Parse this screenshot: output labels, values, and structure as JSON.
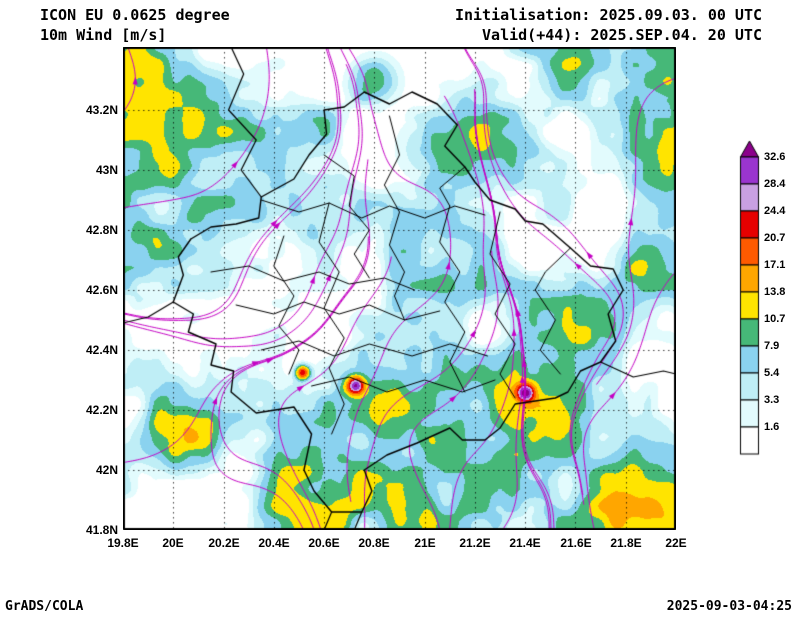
{
  "header": {
    "model_line": "ICON EU 0.0625 degree",
    "variable_line": "10m Wind [m/s]",
    "init_line": "Initialisation: 2025.09.03. 00 UTC",
    "valid_line": "Valid(+44): 2025.SEP.04. 20 UTC"
  },
  "footer": {
    "credit": "GrADS/COLA",
    "timestamp": "2025-09-03-04:25"
  },
  "axes": {
    "lat_ticks": [
      "43.2N",
      "43N",
      "42.8N",
      "42.6N",
      "42.4N",
      "42.2N",
      "42N",
      "41.8N"
    ],
    "lon_ticks": [
      "19.8E",
      "20E",
      "20.2E",
      "20.4E",
      "20.6E",
      "20.8E",
      "21E",
      "21.2E",
      "21.4E",
      "21.6E",
      "21.8E",
      "22E"
    ],
    "lon_range": [
      19.8,
      22.0
    ],
    "lat_range": [
      41.8,
      43.41
    ]
  },
  "colorbar": {
    "labels": [
      "32.6",
      "28.4",
      "24.4",
      "20.7",
      "17.1",
      "13.8",
      "10.7",
      "7.9",
      "5.4",
      "3.3",
      "1.6"
    ],
    "levels_ascending": [
      1.6,
      3.3,
      5.4,
      7.9,
      10.7,
      13.8,
      17.1,
      20.7,
      24.4,
      28.4,
      32.6
    ],
    "colors_bottom_to_top": [
      "#ffffff",
      "#e2fbfd",
      "#bfeef6",
      "#8ad2ef",
      "#46b878",
      "#ffe400",
      "#ffa600",
      "#ff5a00",
      "#e60000",
      "#c9a0e2",
      "#9a35cf",
      "#8b008b"
    ]
  },
  "chart_data": {
    "type": "heatmap",
    "title": "10m Wind [m/s]",
    "model": "ICON EU 0.0625 degree",
    "units": "m/s",
    "lon_range": [
      19.8,
      22.0
    ],
    "lat_range": [
      41.8,
      43.41
    ],
    "contour_levels": [
      1.6,
      3.3,
      5.4,
      7.9,
      10.7,
      13.8,
      17.1,
      20.7,
      24.4,
      28.4,
      32.6
    ],
    "palette_bottom_to_top": [
      "#ffffff",
      "#e2fbfd",
      "#bfeef6",
      "#8ad2ef",
      "#46b878",
      "#ffe400",
      "#ffa600",
      "#ff5a00",
      "#e60000",
      "#c9a0e2",
      "#9a35cf",
      "#8b008b"
    ],
    "legend_position": "right",
    "grid": "dotted"
  },
  "map_geometry": {
    "border_color": "#000000",
    "streamline_color": "#c400c4",
    "outline": [
      [
        20.07,
        42.77
      ],
      [
        20.02,
        42.71
      ],
      [
        20.04,
        42.65
      ],
      [
        20.0,
        42.56
      ],
      [
        20.08,
        42.52
      ],
      [
        20.06,
        42.46
      ],
      [
        20.17,
        42.42
      ],
      [
        20.15,
        42.35
      ],
      [
        20.24,
        42.33
      ],
      [
        20.23,
        42.26
      ],
      [
        20.33,
        42.19
      ],
      [
        20.48,
        42.21
      ],
      [
        20.55,
        42.12
      ],
      [
        20.52,
        42.0
      ],
      [
        20.56,
        41.93
      ],
      [
        20.63,
        41.86
      ],
      [
        20.75,
        41.86
      ],
      [
        20.79,
        41.93
      ],
      [
        20.76,
        42.0
      ],
      [
        20.85,
        42.05
      ],
      [
        20.97,
        42.09
      ],
      [
        21.1,
        42.14
      ],
      [
        21.15,
        42.1
      ],
      [
        21.24,
        42.1
      ],
      [
        21.3,
        42.14
      ],
      [
        21.36,
        42.22
      ],
      [
        21.44,
        42.23
      ],
      [
        21.52,
        42.24
      ],
      [
        21.57,
        42.26
      ],
      [
        21.62,
        42.33
      ],
      [
        21.7,
        42.36
      ],
      [
        21.76,
        42.43
      ],
      [
        21.73,
        42.52
      ],
      [
        21.79,
        42.6
      ],
      [
        21.75,
        42.67
      ],
      [
        21.66,
        42.68
      ],
      [
        21.58,
        42.74
      ],
      [
        21.47,
        42.82
      ],
      [
        21.4,
        42.83
      ],
      [
        21.36,
        42.87
      ],
      [
        21.26,
        42.9
      ],
      [
        21.2,
        42.96
      ],
      [
        21.16,
        43.01
      ],
      [
        21.08,
        43.08
      ],
      [
        21.13,
        43.15
      ],
      [
        21.05,
        43.22
      ],
      [
        20.95,
        43.26
      ],
      [
        20.86,
        43.22
      ],
      [
        20.76,
        43.26
      ],
      [
        20.68,
        43.21
      ],
      [
        20.6,
        43.2
      ],
      [
        20.61,
        43.12
      ],
      [
        20.54,
        43.05
      ],
      [
        20.48,
        42.97
      ],
      [
        20.35,
        42.91
      ],
      [
        20.34,
        42.84
      ],
      [
        20.25,
        42.82
      ],
      [
        20.15,
        42.81
      ],
      [
        20.07,
        42.77
      ]
    ],
    "external_borders": [
      [
        [
          19.8,
          42.49
        ],
        [
          19.9,
          42.51
        ],
        [
          20.0,
          42.56
        ]
      ],
      [
        [
          20.35,
          42.91
        ],
        [
          20.27,
          43.0
        ],
        [
          20.33,
          43.1
        ],
        [
          20.22,
          43.2
        ],
        [
          20.28,
          43.32
        ],
        [
          20.23,
          43.41
        ]
      ],
      [
        [
          20.63,
          41.86
        ],
        [
          20.6,
          41.8
        ]
      ],
      [
        [
          20.75,
          41.86
        ],
        [
          20.72,
          41.8
        ]
      ],
      [
        [
          21.7,
          42.36
        ],
        [
          21.83,
          42.31
        ],
        [
          21.95,
          42.33
        ],
        [
          22.0,
          42.32
        ]
      ]
    ],
    "internal_borders": [
      [
        [
          20.86,
          43.18
        ],
        [
          20.9,
          43.05
        ],
        [
          20.84,
          42.95
        ],
        [
          20.9,
          42.86
        ],
        [
          20.86,
          42.75
        ],
        [
          20.92,
          42.66
        ],
        [
          20.88,
          42.58
        ],
        [
          20.92,
          42.5
        ]
      ],
      [
        [
          20.6,
          43.05
        ],
        [
          20.72,
          42.98
        ],
        [
          20.7,
          42.88
        ],
        [
          20.78,
          42.8
        ],
        [
          20.72,
          42.72
        ],
        [
          20.78,
          42.64
        ]
      ],
      [
        [
          20.35,
          42.9
        ],
        [
          20.5,
          42.86
        ],
        [
          20.62,
          42.89
        ],
        [
          20.75,
          42.84
        ],
        [
          20.86,
          42.88
        ],
        [
          21.0,
          42.84
        ],
        [
          21.12,
          42.88
        ],
        [
          21.24,
          42.85
        ]
      ],
      [
        [
          20.15,
          42.66
        ],
        [
          20.3,
          42.68
        ],
        [
          20.44,
          42.63
        ],
        [
          20.58,
          42.66
        ],
        [
          20.7,
          42.62
        ],
        [
          20.84,
          42.64
        ],
        [
          20.96,
          42.6
        ]
      ],
      [
        [
          20.25,
          42.55
        ],
        [
          20.4,
          42.52
        ],
        [
          20.52,
          42.56
        ],
        [
          20.66,
          42.52
        ],
        [
          20.78,
          42.55
        ],
        [
          20.92,
          42.5
        ],
        [
          21.06,
          42.53
        ]
      ],
      [
        [
          20.35,
          42.4
        ],
        [
          20.5,
          42.43
        ],
        [
          20.64,
          42.38
        ],
        [
          20.78,
          42.42
        ],
        [
          20.95,
          42.38
        ],
        [
          21.1,
          42.42
        ],
        [
          21.25,
          42.38
        ]
      ],
      [
        [
          20.55,
          42.28
        ],
        [
          20.7,
          42.31
        ],
        [
          20.85,
          42.26
        ],
        [
          21.0,
          42.3
        ],
        [
          21.15,
          42.26
        ],
        [
          21.28,
          42.3
        ]
      ],
      [
        [
          21.3,
          42.86
        ],
        [
          21.26,
          42.72
        ],
        [
          21.34,
          42.62
        ],
        [
          21.28,
          42.52
        ],
        [
          21.36,
          42.42
        ],
        [
          21.3,
          42.32
        ],
        [
          21.36,
          42.24
        ]
      ],
      [
        [
          21.1,
          42.88
        ],
        [
          21.06,
          42.76
        ],
        [
          21.14,
          42.66
        ],
        [
          21.08,
          42.56
        ],
        [
          21.16,
          42.46
        ],
        [
          21.1,
          42.36
        ],
        [
          21.16,
          42.26
        ]
      ],
      [
        [
          20.44,
          42.78
        ],
        [
          20.4,
          42.68
        ],
        [
          20.48,
          42.58
        ],
        [
          20.42,
          42.48
        ],
        [
          20.5,
          42.4
        ],
        [
          20.46,
          42.32
        ]
      ],
      [
        [
          20.62,
          42.89
        ],
        [
          20.58,
          42.76
        ],
        [
          20.66,
          42.66
        ],
        [
          20.6,
          42.54
        ],
        [
          20.68,
          42.44
        ],
        [
          20.62,
          42.34
        ],
        [
          20.68,
          42.22
        ],
        [
          20.63,
          42.12
        ]
      ],
      [
        [
          21.44,
          42.6
        ],
        [
          21.52,
          42.5
        ],
        [
          21.46,
          42.4
        ],
        [
          21.54,
          42.32
        ]
      ],
      [
        [
          21.58,
          42.74
        ],
        [
          21.48,
          42.66
        ],
        [
          21.44,
          42.6
        ]
      ],
      [
        [
          21.16,
          43.01
        ],
        [
          21.06,
          42.94
        ],
        [
          21.1,
          42.88
        ]
      ]
    ]
  }
}
